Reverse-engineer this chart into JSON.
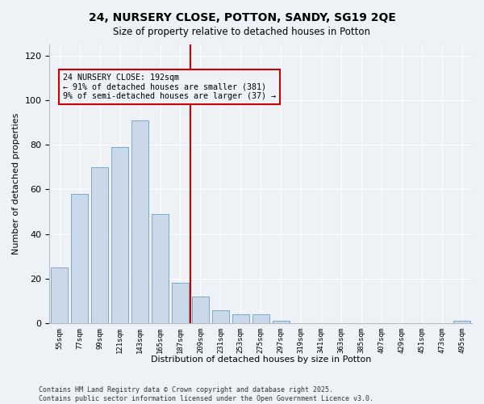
{
  "title": "24, NURSERY CLOSE, POTTON, SANDY, SG19 2QE",
  "subtitle": "Size of property relative to detached houses in Potton",
  "xlabel": "Distribution of detached houses by size in Potton",
  "ylabel": "Number of detached properties",
  "bar_labels": [
    "55sqm",
    "77sqm",
    "99sqm",
    "121sqm",
    "143sqm",
    "165sqm",
    "187sqm",
    "209sqm",
    "231sqm",
    "253sqm",
    "275sqm",
    "297sqm",
    "319sqm",
    "341sqm",
    "363sqm",
    "385sqm",
    "407sqm",
    "429sqm",
    "451sqm",
    "473sqm",
    "495sqm"
  ],
  "bar_values": [
    25,
    58,
    70,
    79,
    91,
    49,
    18,
    12,
    6,
    4,
    4,
    1,
    0,
    0,
    0,
    0,
    0,
    0,
    0,
    0,
    1
  ],
  "bar_color": "#c9d9ea",
  "bar_edge_color": "#7aaac8",
  "vline_color": "#cc0000",
  "annotation_text": "24 NURSERY CLOSE: 192sqm\n← 91% of detached houses are smaller (381)\n9% of semi-detached houses are larger (37) →",
  "annotation_box_color": "#cc0000",
  "ylim": [
    0,
    125
  ],
  "yticks": [
    0,
    20,
    40,
    60,
    80,
    100,
    120
  ],
  "bg_color": "#eef2f7",
  "grid_color": "#ffffff",
  "footer": "Contains HM Land Registry data © Crown copyright and database right 2025.\nContains public sector information licensed under the Open Government Licence v3.0."
}
